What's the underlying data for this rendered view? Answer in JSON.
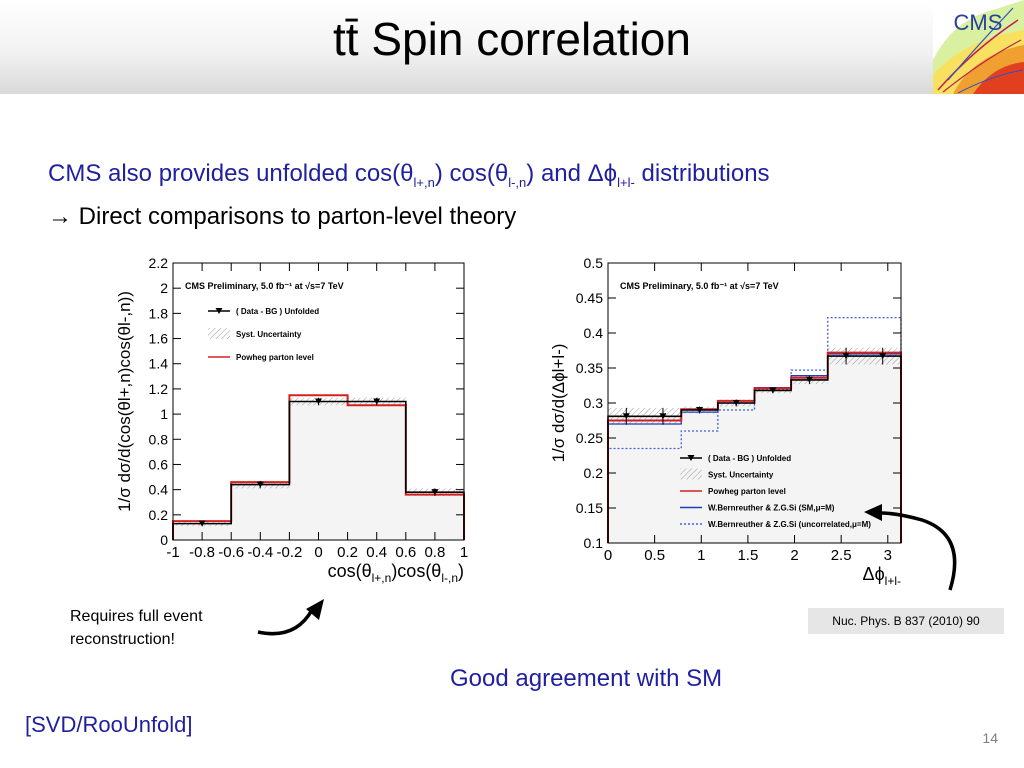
{
  "slide": {
    "title": "tt̄ Spin correlation",
    "logo_text": "CMS",
    "intro": {
      "line1": {
        "pre": "CMS also provides unfolded cos(θ",
        "s1": "l+,n",
        "mid1": ") cos(θ",
        "s2": "l-,n",
        "mid2": ") and Δϕ",
        "s3": "l+l-",
        "post": " distributions"
      },
      "line2": "→ Direct comparisons to parton-level theory"
    },
    "note": [
      "Requires full event",
      "reconstruction!"
    ],
    "reference": "Nuc. Phys. B 837 (2010) 90",
    "conclusion": "Good agreement with SM",
    "link": "[SVD/RooUnfold]",
    "page_number": "14",
    "colors": {
      "accent": "#1f1f9f",
      "powheg": "#d62020",
      "sm": "#1f3fbf",
      "uncorrelated": "#3f5fdf"
    }
  },
  "chart_data": [
    {
      "type": "bar",
      "caption": "CMS Preliminary, 5.0 fb⁻¹ at √s=7 TeV",
      "xlabel": {
        "main": "cos(θ",
        "s1": "l+,n",
        "mid": ")cos(θ",
        "s2": "l-,n",
        "end": ")"
      },
      "ylabel": "1/σ dσ/d(cos(θl+,n)cos(θl-,n))",
      "xlim": [
        -1,
        1
      ],
      "ylim": [
        0,
        2.2
      ],
      "bin_edges": [
        -1,
        -0.6,
        -0.2,
        0.2,
        0.6,
        1
      ],
      "x_ticks": [
        "-1",
        "-0.8",
        "-0.6",
        "-0.4",
        "-0.2",
        "0",
        "0.2",
        "0.4",
        "0.6",
        "0.8",
        "1"
      ],
      "y_ticks": [
        "0",
        "0.2",
        "0.4",
        "0.6",
        "0.8",
        "1",
        "1.2",
        "1.4",
        "1.6",
        "1.8",
        "2",
        "2.2"
      ],
      "legend": [
        "( Data - BG ) Unfolded",
        "Syst. Uncertainty",
        "Powheg parton level"
      ],
      "legend_position": "top-left",
      "series": [
        {
          "name": "( Data - BG ) Unfolded",
          "values": [
            0.13,
            0.44,
            1.1,
            1.1,
            0.38
          ]
        },
        {
          "name": "Powheg parton level",
          "values": [
            0.15,
            0.46,
            1.15,
            1.07,
            0.36
          ]
        }
      ],
      "syst": [
        0.02,
        0.03,
        0.03,
        0.03,
        0.03
      ]
    },
    {
      "type": "bar",
      "caption": "CMS Preliminary, 5.0 fb⁻¹ at √s=7 TeV",
      "xlabel": {
        "main": "Δϕ",
        "s1": "l+l-"
      },
      "ylabel": "1/σ dσ/d(Δϕl+l-)",
      "xlim": [
        0,
        3.1416
      ],
      "ylim": [
        0.1,
        0.5
      ],
      "bin_edges": [
        0,
        0.3927,
        0.7854,
        1.1781,
        1.5708,
        1.9635,
        2.3562,
        2.7489,
        3.1416
      ],
      "x_ticks": [
        "0",
        "0.5",
        "1",
        "1.5",
        "2",
        "2.5",
        "3"
      ],
      "y_ticks": [
        "0.1",
        "0.15",
        "0.2",
        "0.25",
        "0.3",
        "0.35",
        "0.4",
        "0.45",
        "0.5"
      ],
      "legend": [
        "( Data - BG ) Unfolded",
        "Syst. Uncertainty",
        "Powheg parton level",
        "W.Bernreuther & Z.G.Si (SM,μ=M)",
        "W.Bernreuther & Z.G.Si (uncorrelated,μ=M)"
      ],
      "legend_position": "bottom-right",
      "series": [
        {
          "name": "( Data - BG ) Unfolded",
          "values": [
            0.281,
            0.281,
            0.29,
            0.3,
            0.318,
            0.333,
            0.367,
            0.367
          ]
        },
        {
          "name": "Powheg parton level",
          "values": [
            0.275,
            0.275,
            0.291,
            0.303,
            0.321,
            0.336,
            0.372,
            0.372
          ]
        },
        {
          "name": "W.Bernreuther & Z.G.Si (SM,μ=M)",
          "values": [
            0.27,
            0.27,
            0.287,
            0.3,
            0.322,
            0.339,
            0.37,
            0.37
          ]
        },
        {
          "name": "W.Bernreuther & Z.G.Si (uncorrelated,μ=M)",
          "values": [
            0.235,
            0.235,
            0.26,
            0.29,
            0.32,
            0.347,
            0.422,
            0.422
          ]
        }
      ],
      "syst": [
        0.012,
        0.012,
        0.005,
        0.005,
        0.004,
        0.006,
        0.012,
        0.012
      ]
    }
  ]
}
